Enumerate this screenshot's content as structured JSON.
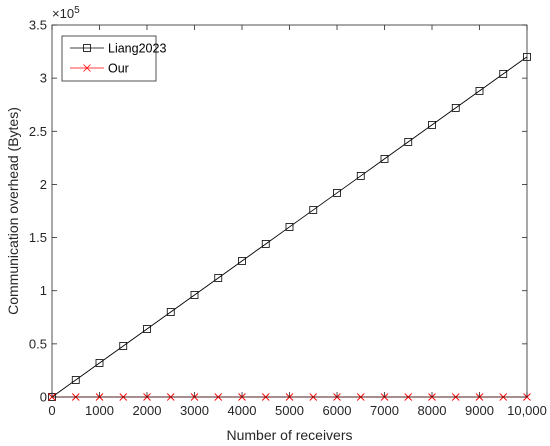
{
  "chart_data": {
    "type": "line",
    "title": "",
    "xlabel": "Number of receivers",
    "ylabel": "Communication overhead (Bytes)",
    "xlim": [
      0,
      10000
    ],
    "ylim": [
      0,
      350000
    ],
    "x_ticks": [
      0,
      1000,
      2000,
      3000,
      4000,
      5000,
      6000,
      7000,
      8000,
      9000,
      10000
    ],
    "x_tick_labels": [
      "0",
      "1000",
      "2000",
      "3000",
      "4000",
      "5000",
      "6000",
      "7000",
      "8000",
      "9000",
      "10,000"
    ],
    "y_ticks": [
      0,
      50000,
      100000,
      150000,
      200000,
      250000,
      300000,
      350000
    ],
    "y_tick_labels": [
      "0",
      "0.5",
      "1",
      "1.5",
      "2",
      "2.5",
      "3",
      "3.5"
    ],
    "y_multiplier_base": "×10",
    "y_multiplier_exp": "5",
    "grid": false,
    "legend_position": "top-left",
    "x": [
      0,
      500,
      1000,
      1500,
      2000,
      2500,
      3000,
      3500,
      4000,
      4500,
      5000,
      5500,
      6000,
      6500,
      7000,
      7500,
      8000,
      8500,
      9000,
      9500,
      10000
    ],
    "series": [
      {
        "name": "Liang2023",
        "color": "#000000",
        "marker": "square",
        "values": [
          0,
          16000,
          32000,
          48000,
          64000,
          80000,
          96000,
          112000,
          128000,
          144000,
          160000,
          176000,
          192000,
          208000,
          224000,
          240000,
          256000,
          272000,
          288000,
          304000,
          320000
        ]
      },
      {
        "name": "Our",
        "color": "#ff0000",
        "marker": "x",
        "values": [
          0,
          0,
          0,
          0,
          0,
          0,
          0,
          0,
          0,
          0,
          0,
          0,
          0,
          0,
          0,
          0,
          0,
          0,
          0,
          0,
          0
        ]
      }
    ]
  }
}
